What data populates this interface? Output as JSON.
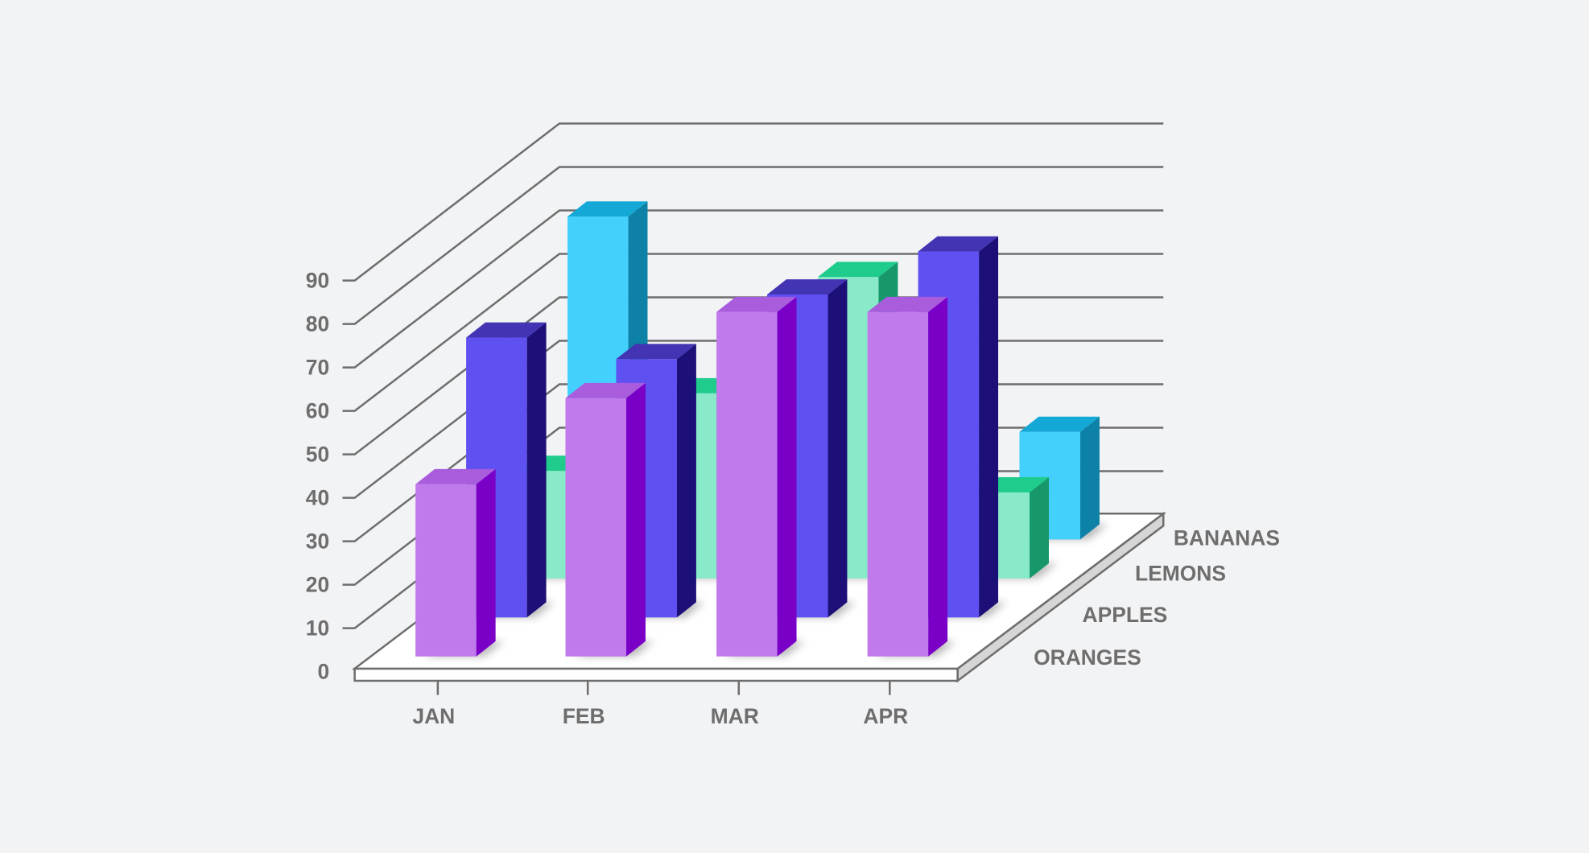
{
  "chart_data": {
    "type": "bar",
    "subtype": "3d-clustered-depth",
    "categories": [
      "JAN",
      "FEB",
      "MAR",
      "APR"
    ],
    "y_ticks": [
      "0",
      "10",
      "20",
      "30",
      "40",
      "50",
      "60",
      "70",
      "80",
      "90"
    ],
    "ylim": [
      0,
      90
    ],
    "grid": true,
    "series": [
      {
        "name": "ORANGES",
        "values": [
          40,
          60,
          80,
          80
        ],
        "colors": {
          "front": "#c07aec",
          "side": "#7a00c8",
          "top": "#a95cdc"
        }
      },
      {
        "name": "APPLES",
        "values": [
          65,
          60,
          75,
          85
        ],
        "colors": {
          "front": "#5f50f2",
          "side": "#1c0f78",
          "top": "#4234b2"
        }
      },
      {
        "name": "LEMONS",
        "values": [
          25,
          43,
          70,
          20
        ],
        "colors": {
          "front": "#88eac8",
          "side": "#17986a",
          "top": "#20cc8c"
        }
      },
      {
        "name": "BANANAS",
        "values": [
          75,
          null,
          null,
          25
        ],
        "colors": {
          "front": "#44d0fc",
          "side": "#0d82a6",
          "top": "#14a8d6"
        }
      }
    ],
    "title": "",
    "xlabel": "",
    "ylabel": ""
  }
}
